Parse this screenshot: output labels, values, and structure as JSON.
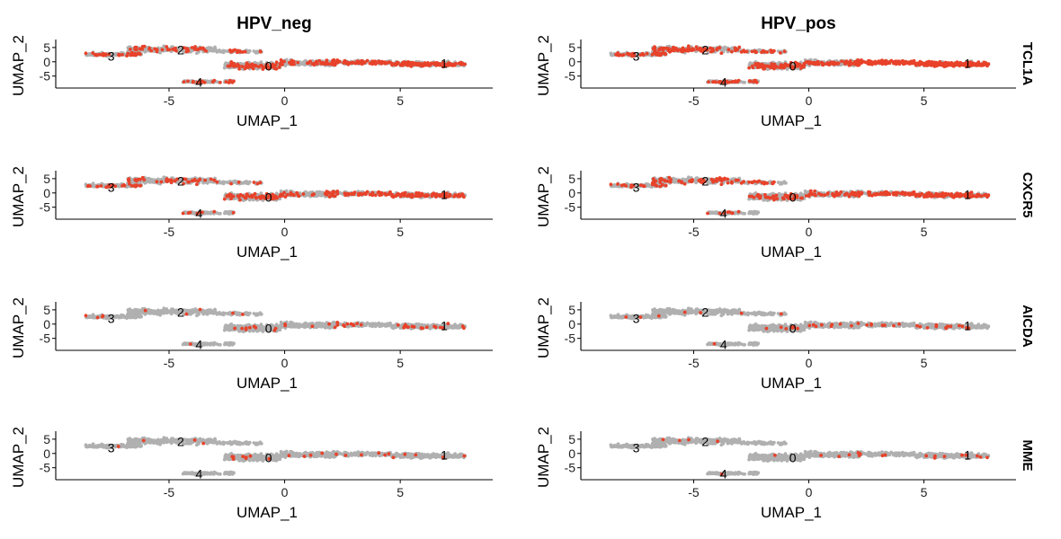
{
  "figure": {
    "columns": [
      "HPV_neg",
      "HPV_pos"
    ],
    "rows": [
      "TCL1A",
      "CXCR5",
      "AICDA",
      "MME"
    ],
    "xlabel": "UMAP_1",
    "ylabel": "UMAP_2",
    "x_ticks": [
      -5,
      0,
      5
    ],
    "y_ticks": [
      5,
      0,
      -5
    ]
  },
  "chart_data": {
    "type": "scatter",
    "title": "",
    "xlabel": "UMAP_1",
    "ylabel": "UMAP_2",
    "xlim": [
      -9.9,
      9.0
    ],
    "ylim": [
      -9.2,
      7.8
    ],
    "grid": false,
    "colors": {
      "base": "#b0b0b0",
      "expressed": "#e8422a"
    },
    "clusters": [
      {
        "label": "0",
        "x": -0.7,
        "y": -1.5
      },
      {
        "label": "1",
        "x": 6.9,
        "y": -0.6
      },
      {
        "label": "2",
        "x": -4.5,
        "y": 4.2
      },
      {
        "label": "3",
        "x": -7.5,
        "y": 2.0
      },
      {
        "label": "4",
        "x": -3.7,
        "y": -7.2
      }
    ],
    "panels": [
      {
        "column": "HPV_neg",
        "gene": "TCL1A",
        "expression_level": 0.55
      },
      {
        "column": "HPV_pos",
        "gene": "TCL1A",
        "expression_level": 0.95
      },
      {
        "column": "HPV_neg",
        "gene": "CXCR5",
        "expression_level": 0.45
      },
      {
        "column": "HPV_pos",
        "gene": "CXCR5",
        "expression_level": 0.5
      },
      {
        "column": "HPV_neg",
        "gene": "AICDA",
        "expression_level": 0.08
      },
      {
        "column": "HPV_pos",
        "gene": "AICDA",
        "expression_level": 0.06
      },
      {
        "column": "HPV_neg",
        "gene": "MME",
        "expression_level": 0.05
      },
      {
        "column": "HPV_pos",
        "gene": "MME",
        "expression_level": 0.04
      }
    ]
  }
}
